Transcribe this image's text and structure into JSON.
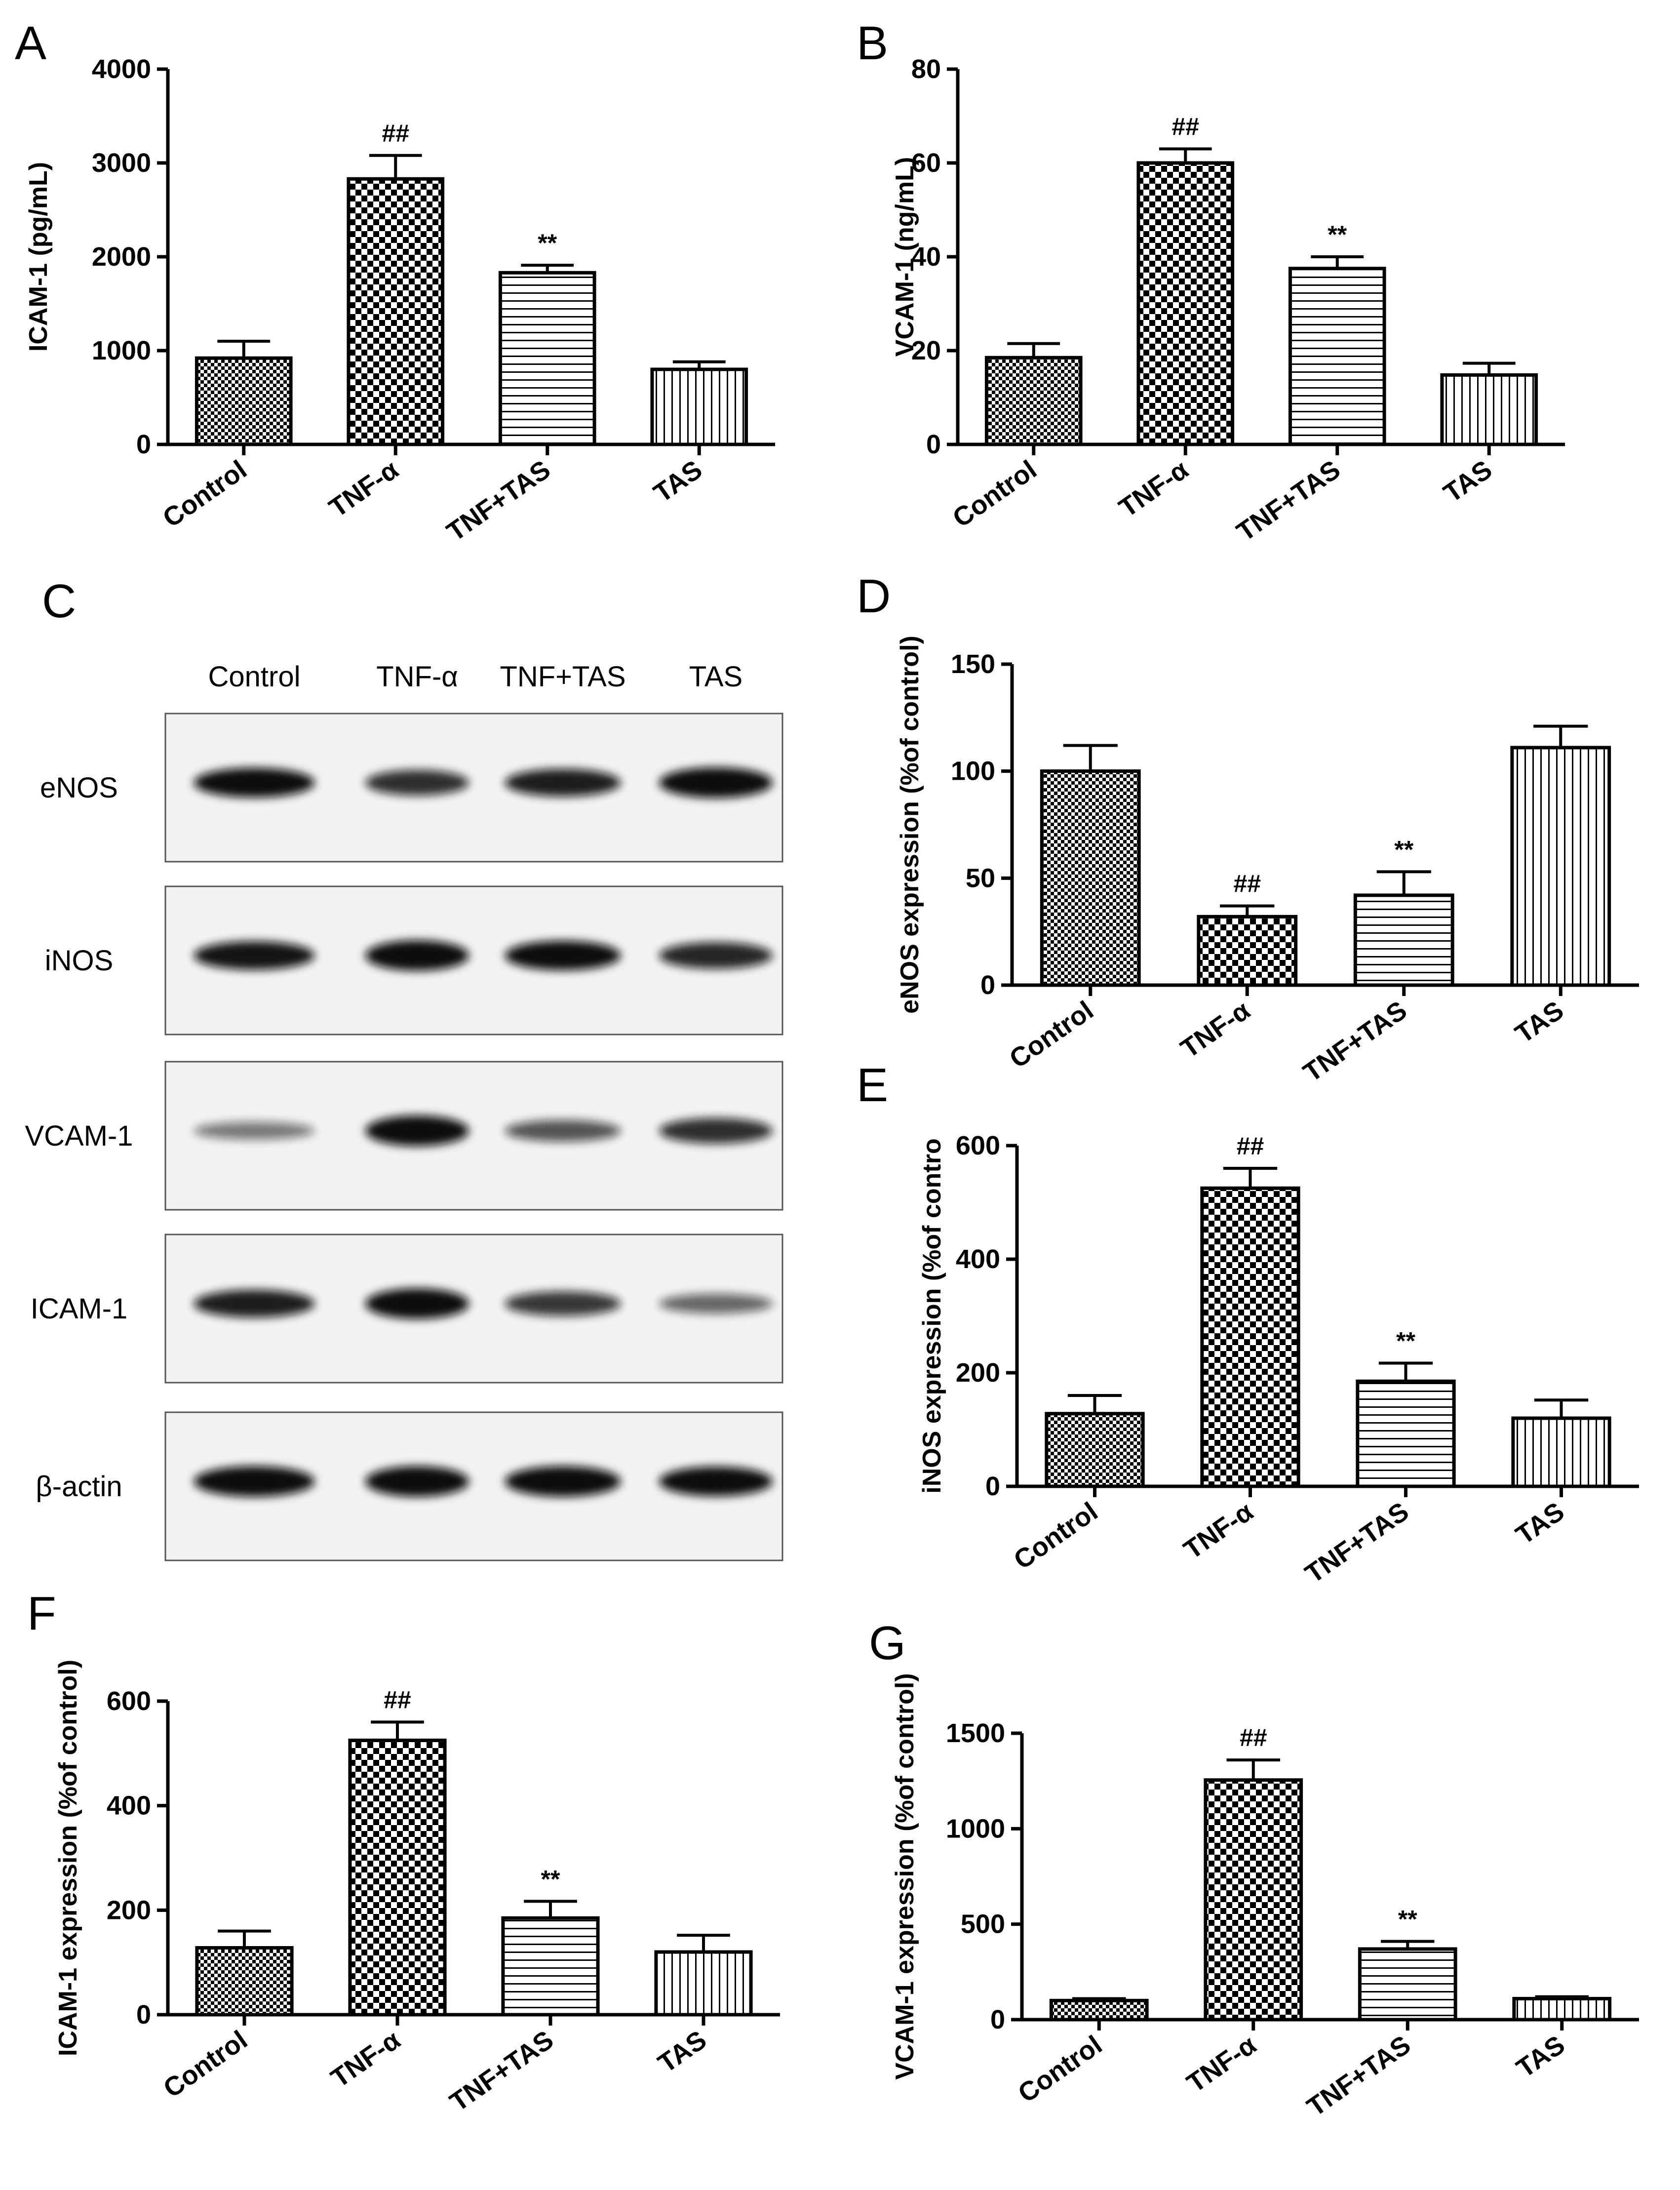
{
  "figure": {
    "background": "#ffffff",
    "bar_color": "#000000",
    "blot_band_color": "#111111",
    "blot_background": "#f2f2f2"
  },
  "chart_data": [
    {
      "id": "A",
      "type": "bar",
      "label": "A",
      "categories": [
        "Control",
        "TNF-α",
        "TNF+TAS",
        "TAS"
      ],
      "values": [
        920,
        2830,
        1830,
        800
      ],
      "errors": [
        180,
        250,
        80,
        80
      ],
      "marks": [
        "",
        "##",
        "**",
        ""
      ],
      "patterns": [
        "check",
        "check-large",
        "horizontal",
        "vertical"
      ],
      "ylabel": "ICAM-1 (pg/mL)",
      "ylim": [
        0,
        4000
      ],
      "yticks": [
        "0",
        "1000",
        "2000",
        "3000",
        "4000"
      ]
    },
    {
      "id": "B",
      "type": "bar",
      "label": "B",
      "categories": [
        "Control",
        "TNF-α",
        "TNF+TAS",
        "TAS"
      ],
      "values": [
        18.5,
        60,
        37.5,
        14.8
      ],
      "errors": [
        3,
        3,
        2.5,
        2.5
      ],
      "marks": [
        "",
        "##",
        "**",
        ""
      ],
      "patterns": [
        "check",
        "check-large",
        "horizontal",
        "vertical"
      ],
      "ylabel": "VCAM-1 (ng/mL)",
      "ylim": [
        0,
        80
      ],
      "yticks": [
        "0",
        "20",
        "40",
        "60",
        "80"
      ]
    },
    {
      "id": "D",
      "type": "bar",
      "label": "D",
      "categories": [
        "Control",
        "TNF-α",
        "TNF+TAS",
        "TAS"
      ],
      "values": [
        100,
        32,
        42,
        111
      ],
      "errors": [
        12,
        5,
        11,
        10
      ],
      "marks": [
        "",
        "##",
        "**",
        ""
      ],
      "patterns": [
        "check",
        "check-large",
        "horizontal",
        "vertical"
      ],
      "ylabel": "eNOS expression (%of control)",
      "ylim": [
        0,
        150
      ],
      "yticks": [
        "0",
        "50",
        "100",
        "150"
      ]
    },
    {
      "id": "E",
      "type": "bar",
      "label": "E",
      "categories": [
        "Control",
        "TNF-α",
        "TNF+TAS",
        "TAS"
      ],
      "values": [
        128,
        525,
        185,
        120
      ],
      "errors": [
        32,
        35,
        32,
        32
      ],
      "marks": [
        "",
        "##",
        "**",
        ""
      ],
      "patterns": [
        "check",
        "check-large",
        "horizontal",
        "vertical"
      ],
      "ylabel": "iNOS expression (%of contro",
      "ylim": [
        0,
        600
      ],
      "yticks": [
        "0",
        "200",
        "400",
        "600"
      ]
    },
    {
      "id": "F",
      "type": "bar",
      "label": "F",
      "categories": [
        "Control",
        "TNF-α",
        "TNF+TAS",
        "TAS"
      ],
      "values": [
        128,
        525,
        185,
        120
      ],
      "errors": [
        32,
        35,
        32,
        32
      ],
      "marks": [
        "",
        "##",
        "**",
        ""
      ],
      "patterns": [
        "check",
        "check-large",
        "horizontal",
        "vertical"
      ],
      "ylabel": "ICAM-1 expression (%of control)",
      "ylim": [
        0,
        600
      ],
      "yticks": [
        "0",
        "200",
        "400",
        "600"
      ]
    },
    {
      "id": "G",
      "type": "bar",
      "label": "G",
      "categories": [
        "Control",
        "TNF-α",
        "TNF+TAS",
        "TAS"
      ],
      "values": [
        100,
        1255,
        370,
        110
      ],
      "errors": [
        10,
        105,
        40,
        10
      ],
      "marks": [
        "",
        "##",
        "**",
        ""
      ],
      "patterns": [
        "check",
        "check-large",
        "horizontal",
        "vertical"
      ],
      "ylabel": "VCAM-1 expression (%of control)",
      "ylim": [
        0,
        1500
      ],
      "yticks": [
        "0",
        "500",
        "1000",
        "1500"
      ]
    }
  ],
  "blot": {
    "label": "C",
    "columns": [
      "Control",
      "TNF-α",
      "TNF+TAS",
      "TAS"
    ],
    "rows": [
      {
        "name": "eNOS",
        "intensity": [
          0.95,
          0.75,
          0.85,
          1.0
        ]
      },
      {
        "name": "iNOS",
        "intensity": [
          0.9,
          1.0,
          0.95,
          0.8
        ]
      },
      {
        "name": "VCAM-1",
        "intensity": [
          0.35,
          1.0,
          0.55,
          0.75
        ]
      },
      {
        "name": "ICAM-1",
        "intensity": [
          0.85,
          1.0,
          0.7,
          0.45
        ]
      },
      {
        "name": "β-actin",
        "intensity": [
          1.0,
          1.0,
          1.0,
          0.95
        ]
      }
    ]
  }
}
